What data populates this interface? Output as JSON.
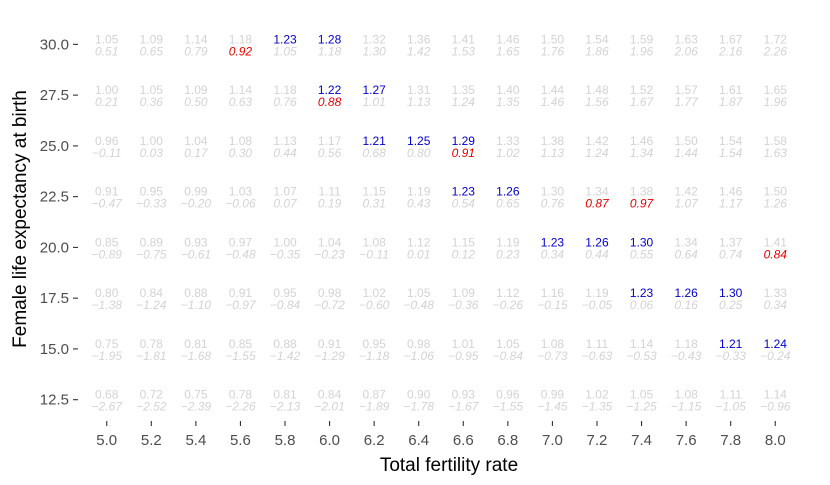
{
  "chart_data": {
    "type": "table",
    "title": "",
    "xlabel": "Total fertility rate",
    "ylabel": "Female life expectancy at birth",
    "x_ticks": [
      "5.0",
      "5.2",
      "5.4",
      "5.6",
      "5.8",
      "6.0",
      "6.2",
      "6.4",
      "6.6",
      "6.8",
      "7.0",
      "7.2",
      "7.4",
      "7.6",
      "7.8",
      "8.0"
    ],
    "y_ticks": [
      "30.0",
      "27.5",
      "25.0",
      "22.5",
      "20.0",
      "17.5",
      "15.0",
      "12.5"
    ],
    "xlim": [
      4.88,
      8.12
    ],
    "ylim": [
      11.5,
      31.2
    ],
    "colors": {
      "faded": "#d3d3d3",
      "top_highlight": "#0000cc",
      "bottom_highlight": "#e60000",
      "axis_text": "#4d4d4d",
      "tick": "#333333",
      "title": "#000000"
    },
    "rows": [
      {
        "y": 30.0,
        "top": [
          "1.05",
          "1.09",
          "1.14",
          "1.18",
          "1.23",
          "1.28",
          "1.32",
          "1.36",
          "1.41",
          "1.46",
          "1.50",
          "1.54",
          "1.59",
          "1.63",
          "1.67",
          "1.72"
        ],
        "bottom": [
          "0.51",
          "0.65",
          "0.79",
          "0.92",
          "1.05",
          "1.18",
          "1.30",
          "1.42",
          "1.53",
          "1.65",
          "1.76",
          "1.86",
          "1.96",
          "2.06",
          "2.16",
          "2.26"
        ],
        "top_hl": [
          4,
          5
        ],
        "bottom_hl": [
          3
        ]
      },
      {
        "y": 27.5,
        "top": [
          "1.00",
          "1.05",
          "1.09",
          "1.14",
          "1.18",
          "1.22",
          "1.27",
          "1.31",
          "1.35",
          "1.40",
          "1.44",
          "1.48",
          "1.52",
          "1.57",
          "1.61",
          "1.65"
        ],
        "bottom": [
          "0.21",
          "0.36",
          "0.50",
          "0.63",
          "0.76",
          "0.88",
          "1.01",
          "1.13",
          "1.24",
          "1.35",
          "1.46",
          "1.56",
          "1.67",
          "1.77",
          "1.87",
          "1.96"
        ],
        "top_hl": [
          5,
          6
        ],
        "bottom_hl": [
          5
        ]
      },
      {
        "y": 25.0,
        "top": [
          "0.96",
          "1.00",
          "1.04",
          "1.08",
          "1.13",
          "1.17",
          "1.21",
          "1.25",
          "1.29",
          "1.33",
          "1.38",
          "1.42",
          "1.46",
          "1.50",
          "1.54",
          "1.58"
        ],
        "bottom": [
          "−0.11",
          "0.03",
          "0.17",
          "0.30",
          "0.44",
          "0.56",
          "0.68",
          "0.80",
          "0.91",
          "1.02",
          "1.13",
          "1.24",
          "1.34",
          "1.44",
          "1.54",
          "1.63"
        ],
        "top_hl": [
          6,
          7,
          8
        ],
        "bottom_hl": [
          8
        ]
      },
      {
        "y": 22.5,
        "top": [
          "0.91",
          "0.95",
          "0.99",
          "1.03",
          "1.07",
          "1.11",
          "1.15",
          "1.19",
          "1.23",
          "1.26",
          "1.30",
          "1.34",
          "1.38",
          "1.42",
          "1.46",
          "1.50"
        ],
        "bottom": [
          "−0.47",
          "−0.33",
          "−0.20",
          "−0.06",
          "0.07",
          "0.19",
          "0.31",
          "0.43",
          "0.54",
          "0.65",
          "0.76",
          "0.87",
          "0.97",
          "1.07",
          "1.17",
          "1.26"
        ],
        "top_hl": [
          8,
          9
        ],
        "bottom_hl": [
          11,
          12
        ]
      },
      {
        "y": 20.0,
        "top": [
          "0.85",
          "0.89",
          "0.93",
          "0.97",
          "1.00",
          "1.04",
          "1.08",
          "1.12",
          "1.15",
          "1.19",
          "1.23",
          "1.26",
          "1.30",
          "1.34",
          "1.37",
          "1.41"
        ],
        "bottom": [
          "−0.89",
          "−0.75",
          "−0.61",
          "−0.48",
          "−0.35",
          "−0.23",
          "−0.11",
          "0.01",
          "0.12",
          "0.23",
          "0.34",
          "0.44",
          "0.55",
          "0.64",
          "0.74",
          "0.84"
        ],
        "top_hl": [
          10,
          11,
          12
        ],
        "bottom_hl": [
          15
        ]
      },
      {
        "y": 17.5,
        "top": [
          "0.80",
          "0.84",
          "0.88",
          "0.91",
          "0.95",
          "0.98",
          "1.02",
          "1.05",
          "1.09",
          "1.12",
          "1.16",
          "1.19",
          "1.23",
          "1.26",
          "1.30",
          "1.33"
        ],
        "bottom": [
          "−1.38",
          "−1.24",
          "−1.10",
          "−0.97",
          "−0.84",
          "−0.72",
          "−0.60",
          "−0.48",
          "−0.36",
          "−0.26",
          "−0.15",
          "−0.05",
          "0.06",
          "0.16",
          "0.25",
          "0.34"
        ],
        "top_hl": [
          12,
          13,
          14
        ],
        "bottom_hl": []
      },
      {
        "y": 15.0,
        "top": [
          "0.75",
          "0.78",
          "0.81",
          "0.85",
          "0.88",
          "0.91",
          "0.95",
          "0.98",
          "1.01",
          "1.05",
          "1.08",
          "1.11",
          "1.14",
          "1.18",
          "1.21",
          "1.24"
        ],
        "bottom": [
          "−1.95",
          "−1.81",
          "−1.68",
          "−1.55",
          "−1.42",
          "−1.29",
          "−1.18",
          "−1.06",
          "−0.95",
          "−0.84",
          "−0.73",
          "−0.63",
          "−0.53",
          "−0.43",
          "−0.33",
          "−0.24"
        ],
        "top_hl": [
          14,
          15
        ],
        "bottom_hl": []
      },
      {
        "y": 12.5,
        "top": [
          "0.68",
          "0.72",
          "0.75",
          "0.78",
          "0.81",
          "0.84",
          "0.87",
          "0.90",
          "0.93",
          "0.96",
          "0.99",
          "1.02",
          "1.05",
          "1.08",
          "1.11",
          "1.14"
        ],
        "bottom": [
          "−2.67",
          "−2.52",
          "−2.39",
          "−2.26",
          "−2.13",
          "−2.01",
          "−1.89",
          "−1.78",
          "−1.67",
          "−1.55",
          "−1.45",
          "−1.35",
          "−1.25",
          "−1.15",
          "−1.05",
          "−0.96"
        ],
        "top_hl": [],
        "bottom_hl": []
      }
    ]
  }
}
